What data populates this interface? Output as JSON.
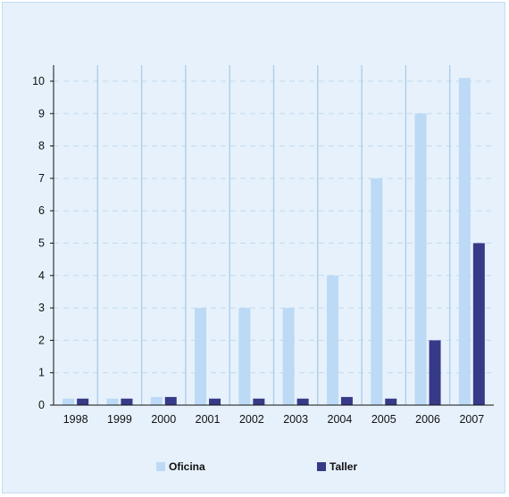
{
  "chart_data": {
    "type": "bar",
    "categories": [
      "1998",
      "1999",
      "2000",
      "2001",
      "2002",
      "2003",
      "2004",
      "2005",
      "2006",
      "2007"
    ],
    "series": [
      {
        "name": "Oficina",
        "color": "#bcdaf5",
        "values": [
          0.2,
          0.2,
          0.25,
          3,
          3,
          3,
          4,
          7,
          9,
          10.1
        ]
      },
      {
        "name": "Taller",
        "color": "#363a87",
        "values": [
          0.2,
          0.2,
          0.25,
          0.2,
          0.2,
          0.2,
          0.25,
          0.2,
          2,
          5
        ]
      }
    ],
    "yticks": [
      "0",
      "1",
      "2",
      "3",
      "4",
      "5",
      "6",
      "7",
      "8",
      "9",
      "10"
    ],
    "ylim": [
      0,
      10.5
    ],
    "title": "",
    "xlabel": "",
    "ylabel": "",
    "grid": "horizontal dashed",
    "legend_position": "bottom"
  },
  "legend": {
    "items": [
      {
        "label": "Oficina",
        "color": "#bcdaf5"
      },
      {
        "label": "Taller",
        "color": "#363a87"
      }
    ]
  }
}
